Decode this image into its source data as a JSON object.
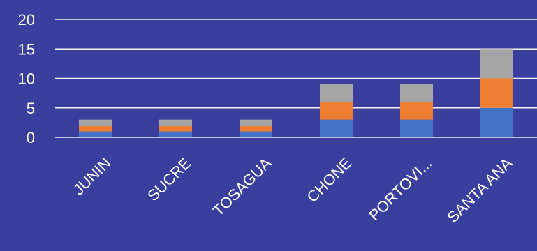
{
  "chart_data": {
    "type": "bar",
    "stacked": true,
    "categories": [
      "JUNIN",
      "SUCRE",
      "TOSAGUA",
      "CHONE",
      "PORTOVI...",
      "SANTA ANA"
    ],
    "series": [
      {
        "values": [
          1,
          1,
          1,
          3,
          3,
          5
        ],
        "color": "#4472c4"
      },
      {
        "values": [
          1,
          1,
          1,
          3,
          3,
          5
        ],
        "color": "#ed7d31"
      },
      {
        "values": [
          1,
          1,
          1,
          3,
          3,
          5
        ],
        "color": "#a5a5a5"
      }
    ],
    "title": "",
    "xlabel": "",
    "ylabel": "",
    "ylim": [
      0,
      20
    ],
    "yticks": [
      0,
      5,
      10,
      15,
      20
    ],
    "grid": true,
    "legend": "none"
  },
  "colors": {
    "background": "#3a3f9e",
    "text": "#ffffff",
    "gridline": "#ffffff"
  }
}
